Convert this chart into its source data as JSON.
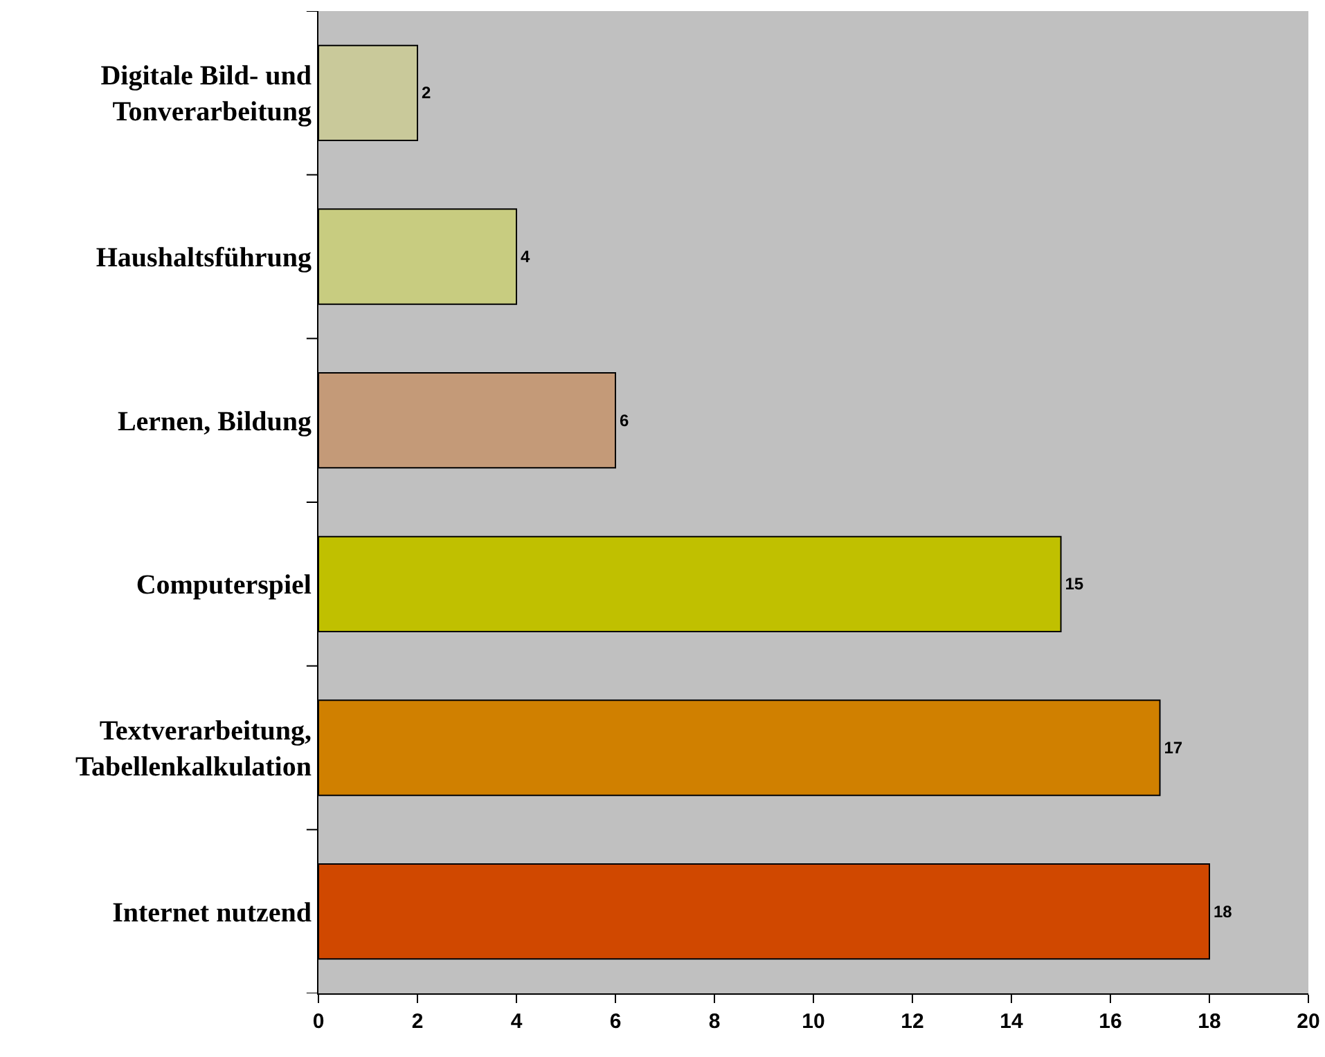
{
  "chart_data": {
    "type": "bar",
    "orientation": "horizontal",
    "categories": [
      "Digitale Bild- und Tonverarbeitung",
      "Haushaltsführung",
      "Lernen, Bildung",
      "Computerspiel",
      "Textverarbeitung, Tabellenkalkulation",
      "Internet nutzend"
    ],
    "values": [
      2,
      4,
      6,
      15,
      17,
      18
    ],
    "colors": [
      "#c9c99a",
      "#c8cc80",
      "#c49a78",
      "#c0c000",
      "#d08000",
      "#d04800"
    ],
    "xlim": [
      0,
      20
    ],
    "xticks": [
      0,
      2,
      4,
      6,
      8,
      10,
      12,
      14,
      16,
      18,
      20
    ],
    "grid": false,
    "data_labels": true
  }
}
